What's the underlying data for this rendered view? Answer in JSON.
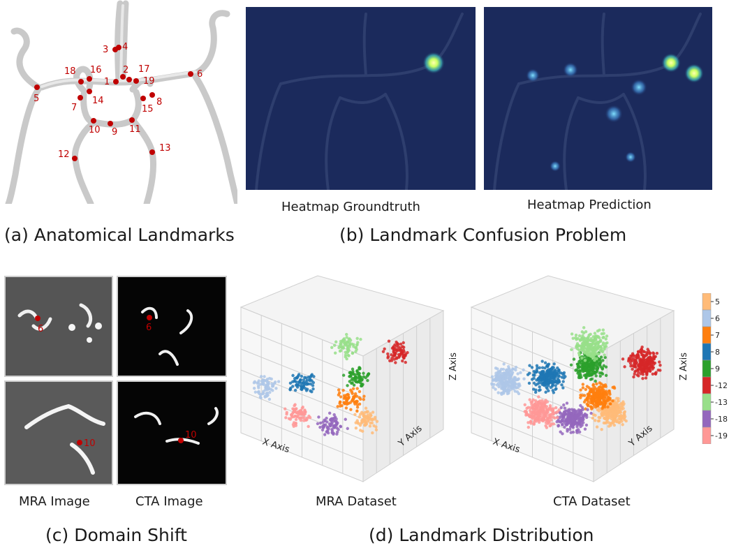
{
  "panel_a": {
    "caption": "(a) Anatomical Landmarks",
    "landmarks": [
      "1",
      "2",
      "3",
      "4",
      "5",
      "6",
      "7",
      "8",
      "9",
      "10",
      "11",
      "12",
      "13",
      "14",
      "15",
      "16",
      "17",
      "18",
      "19"
    ]
  },
  "panel_b": {
    "caption": "(b) Landmark Confusion Problem",
    "left_label": "Heatmap Groundtruth",
    "right_label": "Heatmap Prediction"
  },
  "panel_c": {
    "caption": "(c) Domain Shift",
    "left_label": "MRA Image",
    "right_label": "CTA Image",
    "marker_top": "6",
    "marker_bottom": "10"
  },
  "panel_d": {
    "caption": "(d) Landmark Distribution",
    "left_label": "MRA Dataset",
    "right_label": "CTA Dataset",
    "axes": {
      "x": "X Axis",
      "y": "Y Axis",
      "z": "Z Axis"
    },
    "legend": [
      {
        "label": "5",
        "color": "#ffbb78"
      },
      {
        "label": "6",
        "color": "#aec7e8"
      },
      {
        "label": "7",
        "color": "#ff7f0e"
      },
      {
        "label": "8",
        "color": "#1f77b4"
      },
      {
        "label": "9",
        "color": "#2ca02c"
      },
      {
        "label": "-12",
        "color": "#d62728"
      },
      {
        "label": "-13",
        "color": "#98df8a"
      },
      {
        "label": "-18",
        "color": "#9467bd"
      },
      {
        "label": "-19",
        "color": "#ff9896"
      }
    ]
  },
  "colors": {
    "landmark": "#c00000",
    "heatmap_bg": "#1b2a5c",
    "label_red": "#c00000"
  }
}
